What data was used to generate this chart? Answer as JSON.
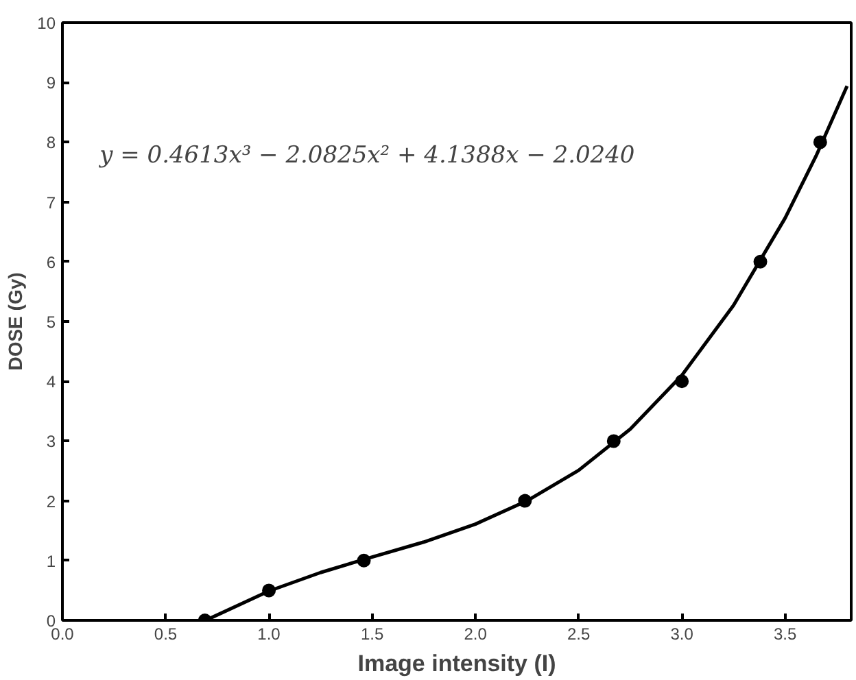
{
  "chart_data": {
    "type": "scatter",
    "xlabel": "Image intensity (I)",
    "ylabel": "DOSE (Gy)",
    "xlim": [
      0,
      3.82
    ],
    "ylim": [
      0,
      10
    ],
    "xticks": [
      {
        "value": 0,
        "label": "0.0"
      },
      {
        "value": 0.5,
        "label": "0.5"
      },
      {
        "value": 1,
        "label": "1.0"
      },
      {
        "value": 1.5,
        "label": "1.5"
      },
      {
        "value": 2,
        "label": "2.0"
      },
      {
        "value": 2.5,
        "label": "2.5"
      },
      {
        "value": 3,
        "label": "3.0"
      },
      {
        "value": 3.5,
        "label": "3.5"
      }
    ],
    "yticks": [
      0,
      1,
      2,
      3,
      4,
      5,
      6,
      7,
      8,
      9,
      10
    ],
    "grid": false,
    "annotations": [
      "y = 0.4613x³ − 2.0825x² + 4.1388x − 2.0240"
    ],
    "series": [
      {
        "color": "#000000",
        "marker": "circle",
        "x": [
          0.69,
          1.0,
          1.46,
          2.24,
          2.67,
          3.0,
          3.38,
          3.67
        ],
        "values": [
          0,
          0.5,
          1.0,
          2.0,
          3.0,
          4.0,
          6.0,
          8.0
        ]
      },
      {
        "type": "line",
        "color": "#000000",
        "line_style": "solid",
        "x": [
          0.7,
          1.0,
          1.25,
          1.5,
          1.75,
          2.0,
          2.25,
          2.5,
          2.75,
          3.0,
          3.25,
          3.5,
          3.65,
          3.8
        ],
        "values": [
          0.01,
          0.49,
          0.8,
          1.06,
          1.31,
          1.61,
          2.0,
          2.51,
          3.2,
          4.1,
          5.27,
          6.73,
          7.77,
          8.94
        ]
      }
    ]
  }
}
